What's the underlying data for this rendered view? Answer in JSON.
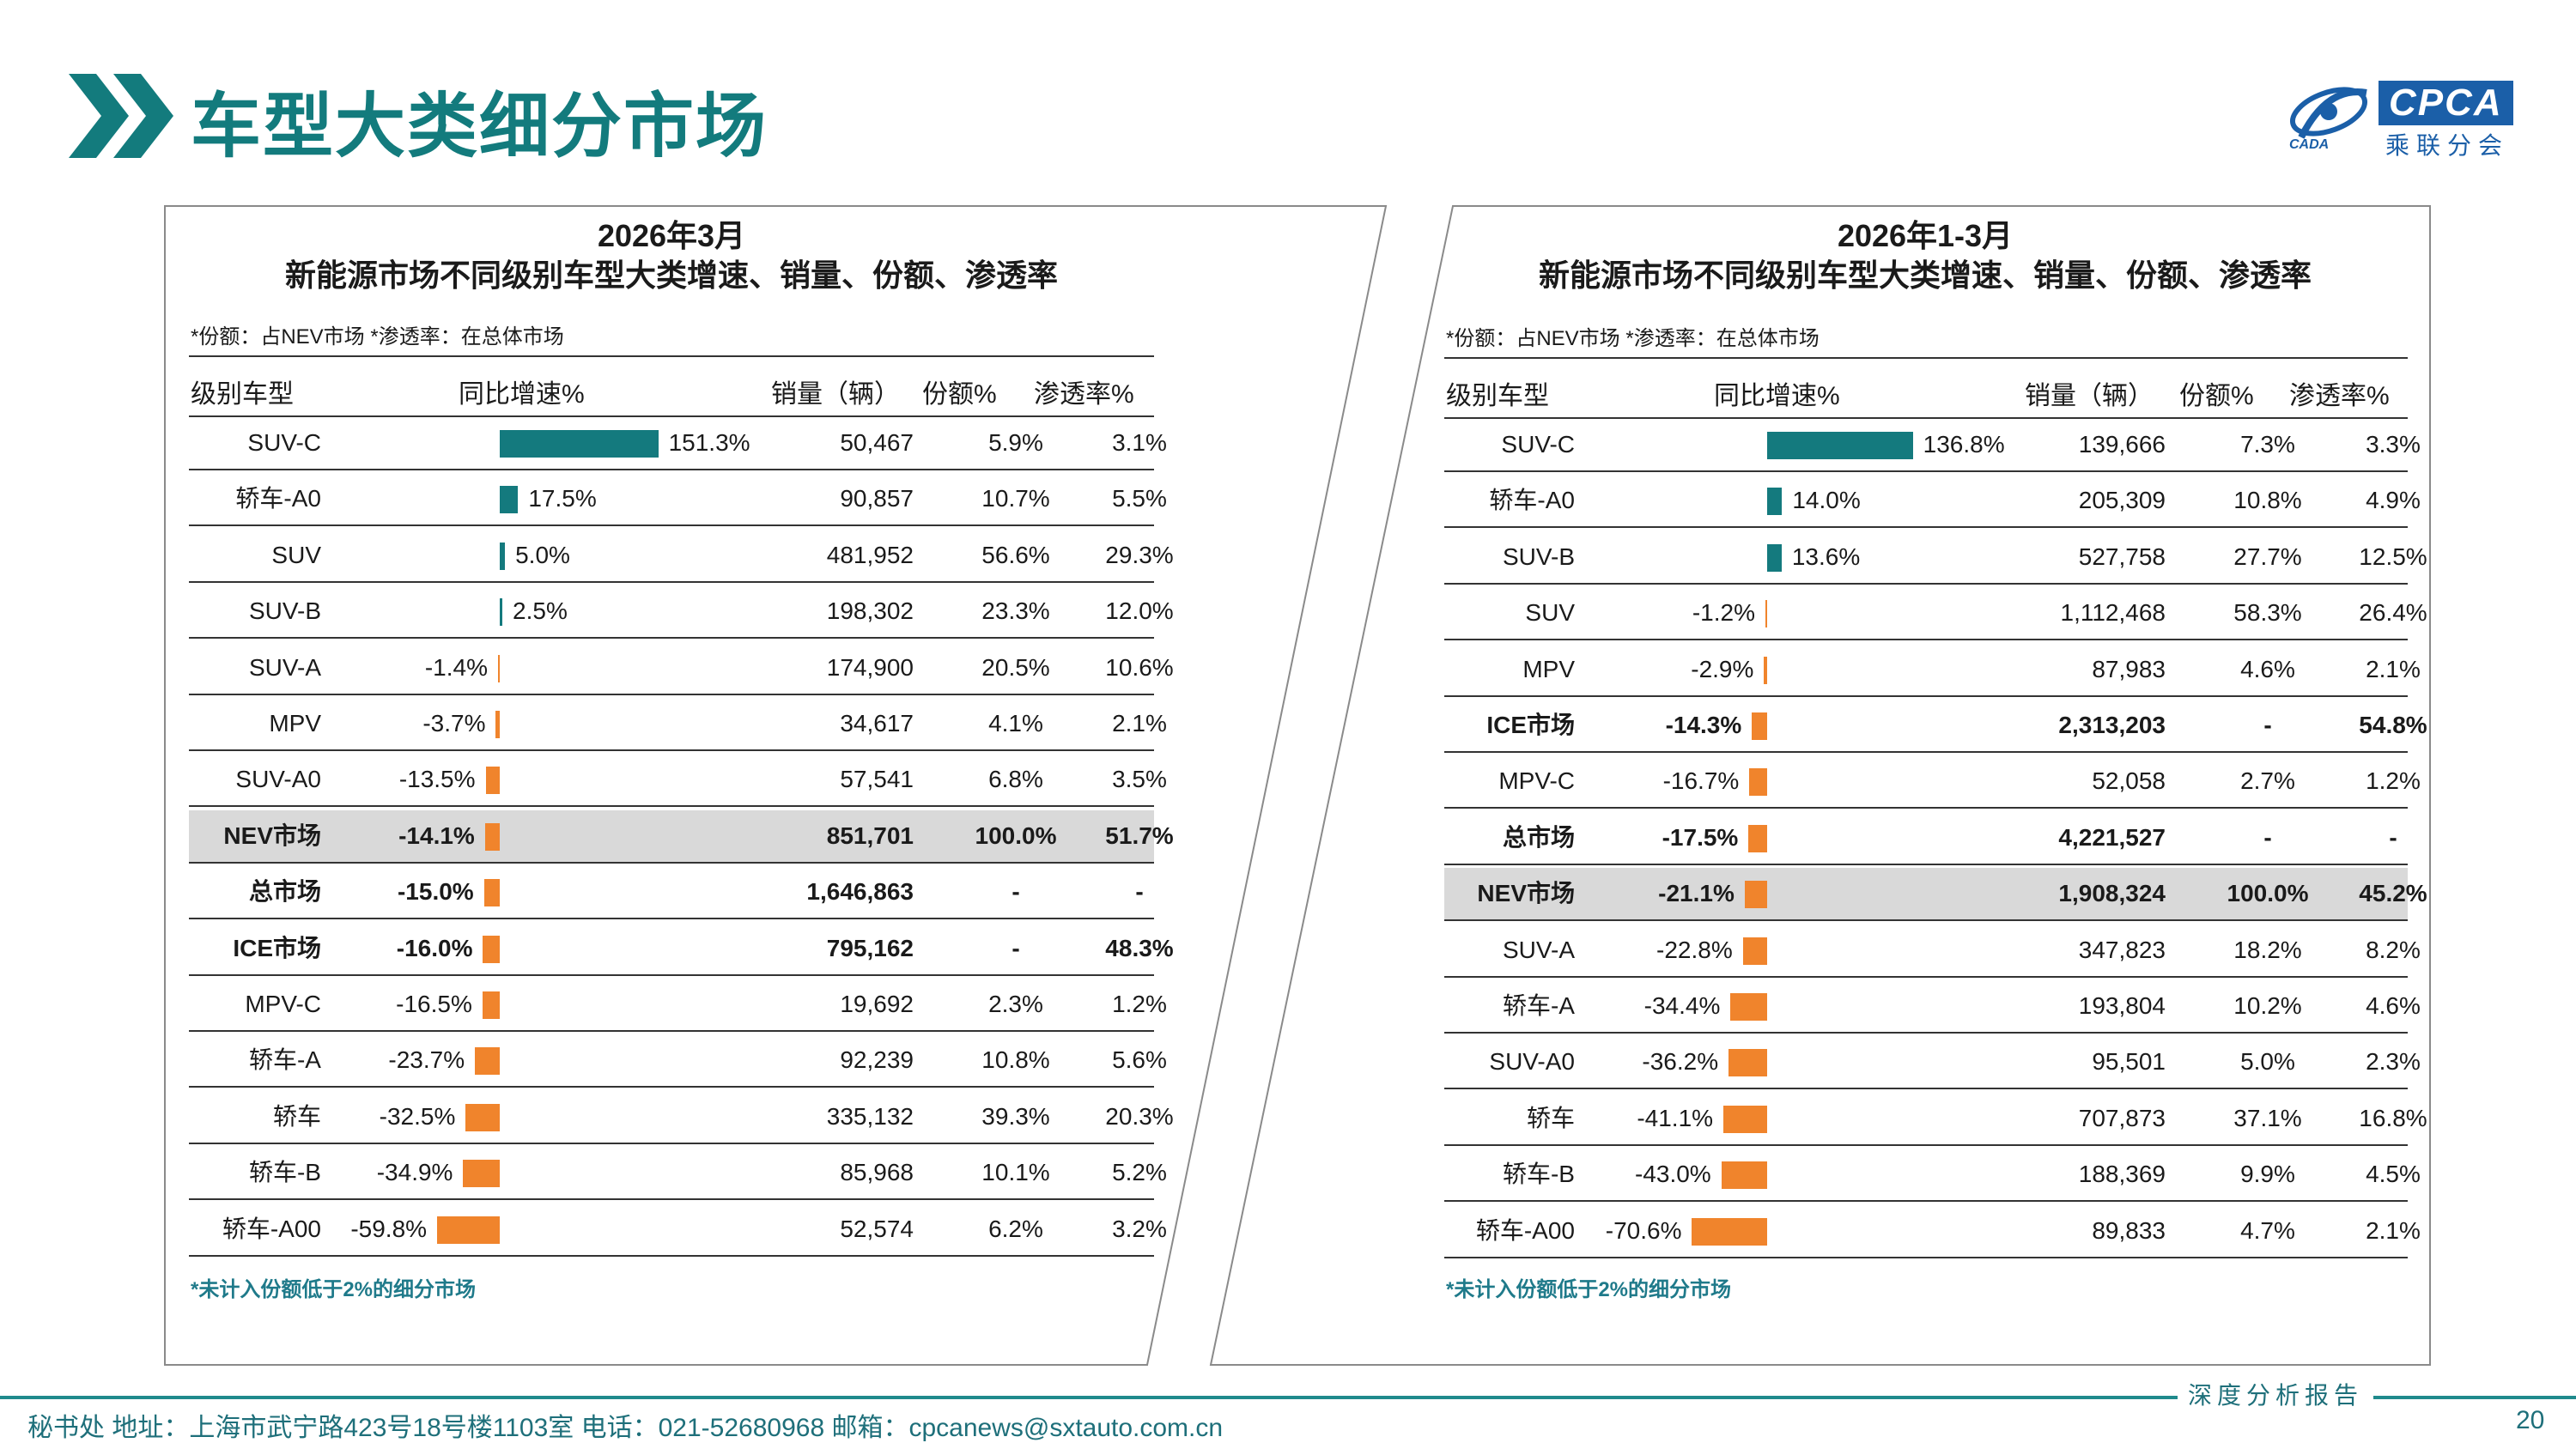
{
  "header": {
    "title": "车型大类细分市场"
  },
  "logo": {
    "brand": "CPCA",
    "subtitle": "乘联分会",
    "mark_text": "CADA"
  },
  "left": {
    "title_line1": "2026年3月",
    "title_line2": "新能源市场不同级别车型大类增速、销量、份额、渗透率",
    "note": "*份额：占NEV市场   *渗透率：在总体市场",
    "columns": [
      "级别车型",
      "同比增速%",
      "销量（辆）",
      "份额%",
      "渗透率%"
    ],
    "rows": [
      {
        "name": "SUV-C",
        "growth_text": "151.3%",
        "growth": 151.3,
        "sales": "50,467",
        "share": "5.9%",
        "pen": "3.1%"
      },
      {
        "name": "轿车-A0",
        "growth_text": "17.5%",
        "growth": 17.5,
        "sales": "90,857",
        "share": "10.7%",
        "pen": "5.5%"
      },
      {
        "name": "SUV",
        "growth_text": "5.0%",
        "growth": 5.0,
        "sales": "481,952",
        "share": "56.6%",
        "pen": "29.3%"
      },
      {
        "name": "SUV-B",
        "growth_text": "2.5%",
        "growth": 2.5,
        "sales": "198,302",
        "share": "23.3%",
        "pen": "12.0%"
      },
      {
        "name": "SUV-A",
        "growth_text": "-1.4%",
        "growth": -1.4,
        "sales": "174,900",
        "share": "20.5%",
        "pen": "10.6%"
      },
      {
        "name": "MPV",
        "growth_text": "-3.7%",
        "growth": -3.7,
        "sales": "34,617",
        "share": "4.1%",
        "pen": "2.1%"
      },
      {
        "name": "SUV-A0",
        "growth_text": "-13.5%",
        "growth": -13.5,
        "sales": "57,541",
        "share": "6.8%",
        "pen": "3.5%"
      },
      {
        "name": "NEV市场",
        "growth_text": "-14.1%",
        "growth": -14.1,
        "sales": "851,701",
        "share": "100.0%",
        "pen": "51.7%",
        "bold": true,
        "highlight": true
      },
      {
        "name": "总市场",
        "growth_text": "-15.0%",
        "growth": -15.0,
        "sales": "1,646,863",
        "share": "-",
        "pen": "-",
        "bold": true
      },
      {
        "name": "ICE市场",
        "growth_text": "-16.0%",
        "growth": -16.0,
        "sales": "795,162",
        "share": "-",
        "pen": "48.3%",
        "bold": true
      },
      {
        "name": "MPV-C",
        "growth_text": "-16.5%",
        "growth": -16.5,
        "sales": "19,692",
        "share": "2.3%",
        "pen": "1.2%"
      },
      {
        "name": "轿车-A",
        "growth_text": "-23.7%",
        "growth": -23.7,
        "sales": "92,239",
        "share": "10.8%",
        "pen": "5.6%"
      },
      {
        "name": "轿车",
        "growth_text": "-32.5%",
        "growth": -32.5,
        "sales": "335,132",
        "share": "39.3%",
        "pen": "20.3%"
      },
      {
        "name": "轿车-B",
        "growth_text": "-34.9%",
        "growth": -34.9,
        "sales": "85,968",
        "share": "10.1%",
        "pen": "5.2%"
      },
      {
        "name": "轿车-A00",
        "growth_text": "-59.8%",
        "growth": -59.8,
        "sales": "52,574",
        "share": "6.2%",
        "pen": "3.2%"
      }
    ],
    "footnote": "*未计入份额低于2%的细分市场"
  },
  "right": {
    "title_line1": "2026年1-3月",
    "title_line2": "新能源市场不同级别车型大类增速、销量、份额、渗透率",
    "note": "*份额：占NEV市场   *渗透率：在总体市场",
    "columns": [
      "级别车型",
      "同比增速%",
      "销量（辆）",
      "份额%",
      "渗透率%"
    ],
    "rows": [
      {
        "name": "SUV-C",
        "growth_text": "136.8%",
        "growth": 136.8,
        "sales": "139,666",
        "share": "7.3%",
        "pen": "3.3%"
      },
      {
        "name": "轿车-A0",
        "growth_text": "14.0%",
        "growth": 14.0,
        "sales": "205,309",
        "share": "10.8%",
        "pen": "4.9%"
      },
      {
        "name": "SUV-B",
        "growth_text": "13.6%",
        "growth": 13.6,
        "sales": "527,758",
        "share": "27.7%",
        "pen": "12.5%"
      },
      {
        "name": "SUV",
        "growth_text": "-1.2%",
        "growth": -1.2,
        "sales": "1,112,468",
        "share": "58.3%",
        "pen": "26.4%"
      },
      {
        "name": "MPV",
        "growth_text": "-2.9%",
        "growth": -2.9,
        "sales": "87,983",
        "share": "4.6%",
        "pen": "2.1%"
      },
      {
        "name": "ICE市场",
        "growth_text": "-14.3%",
        "growth": -14.3,
        "sales": "2,313,203",
        "share": "-",
        "pen": "54.8%",
        "bold": true
      },
      {
        "name": "MPV-C",
        "growth_text": "-16.7%",
        "growth": -16.7,
        "sales": "52,058",
        "share": "2.7%",
        "pen": "1.2%"
      },
      {
        "name": "总市场",
        "growth_text": "-17.5%",
        "growth": -17.5,
        "sales": "4,221,527",
        "share": "-",
        "pen": "-",
        "bold": true
      },
      {
        "name": "NEV市场",
        "growth_text": "-21.1%",
        "growth": -21.1,
        "sales": "1,908,324",
        "share": "100.0%",
        "pen": "45.2%",
        "bold": true,
        "highlight": true
      },
      {
        "name": "SUV-A",
        "growth_text": "-22.8%",
        "growth": -22.8,
        "sales": "347,823",
        "share": "18.2%",
        "pen": "8.2%"
      },
      {
        "name": "轿车-A",
        "growth_text": "-34.4%",
        "growth": -34.4,
        "sales": "193,804",
        "share": "10.2%",
        "pen": "4.6%"
      },
      {
        "name": "SUV-A0",
        "growth_text": "-36.2%",
        "growth": -36.2,
        "sales": "95,501",
        "share": "5.0%",
        "pen": "2.3%"
      },
      {
        "name": "轿车",
        "growth_text": "-41.1%",
        "growth": -41.1,
        "sales": "707,873",
        "share": "37.1%",
        "pen": "16.8%"
      },
      {
        "name": "轿车-B",
        "growth_text": "-43.0%",
        "growth": -43.0,
        "sales": "188,369",
        "share": "9.9%",
        "pen": "4.5%"
      },
      {
        "name": "轿车-A00",
        "growth_text": "-70.6%",
        "growth": -70.6,
        "sales": "89,833",
        "share": "4.7%",
        "pen": "2.1%"
      }
    ],
    "footnote": "*未计入份额低于2%的细分市场"
  },
  "footer": {
    "contact": "秘书处   地址：上海市武宁路423号18号楼1103室  电话：021-52680968   邮箱：cpcanews@sxtauto.com.cn",
    "report_tag": "深度分析报告",
    "page": "20"
  },
  "colors": {
    "positive_bar": "#147a7e",
    "negative_bar": "#f0842c",
    "accent": "#137b7d"
  }
}
